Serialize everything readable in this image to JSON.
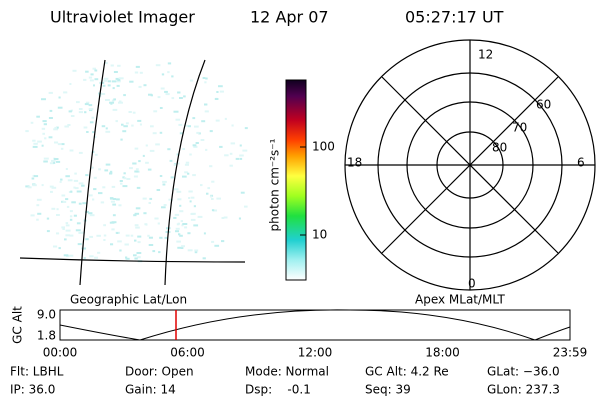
{
  "header": {
    "title": "Ultraviolet Imager",
    "date": "12 Apr 07",
    "time": "05:27:17 UT"
  },
  "colorbar": {
    "unit": "photon cm⁻²s⁻¹",
    "ticks": [
      "100",
      "10"
    ]
  },
  "polar": {
    "labels": {
      "top": "12",
      "right": "6",
      "left": "18",
      "bottom": "0"
    },
    "rings": [
      "60",
      "70",
      "80"
    ]
  },
  "strip": {
    "left_title": "Geographic Lat/Lon",
    "right_title": "Apex MLat/MLT",
    "axis_label": "GC Alt",
    "yticks": [
      "9.0",
      "1.8"
    ],
    "xticks": [
      "00:00",
      "06:00",
      "12:00",
      "18:00",
      "23:59"
    ]
  },
  "info": {
    "rows": [
      [
        "Flt: LBHL",
        "Door: Open",
        "Mode: Normal",
        "GC Alt: 4.2 Re",
        "GLat: −36.0"
      ],
      [
        "IP: 36.0",
        "Gain: 14",
        "Dsp:    -0.1",
        "Seq: 39",
        "GLon: 237.3"
      ]
    ]
  }
}
